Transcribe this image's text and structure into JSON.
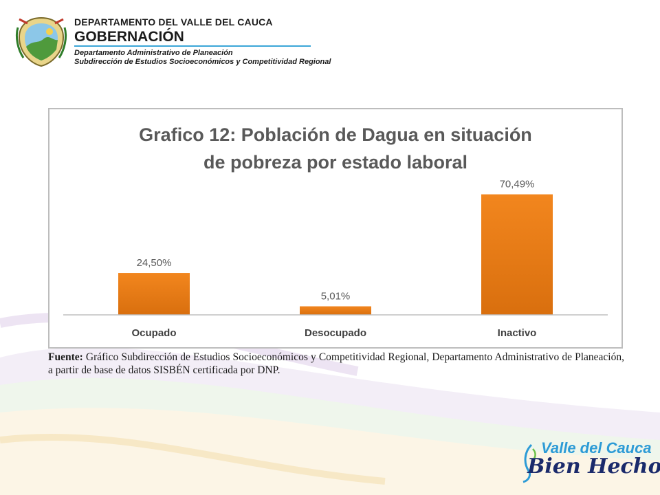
{
  "header": {
    "department": "DEPARTAMENTO DEL VALLE DEL CAUCA",
    "governorate": "GOBERNACIÓN",
    "admin_office": "Departamento  Administrativo de Planeación",
    "sub_office": "Subdirección de Estudios Socioeconómicos y Competitividad Regional"
  },
  "chart_data": {
    "type": "bar",
    "title_line1": "Grafico 12: Población de Dagua en situación",
    "title_line2": "de pobreza por estado laboral",
    "categories": [
      "Ocupado",
      "Desocupado",
      "Inactivo"
    ],
    "values": [
      24.5,
      5.01,
      70.49
    ],
    "value_labels": [
      "24,50%",
      "5,01%",
      "70,49%"
    ],
    "unit": "%",
    "ylim": [
      0,
      80
    ],
    "grid": false,
    "bar_color": "#f2861e",
    "bar_color_dark": "#d96f0e"
  },
  "source": {
    "label": "Fuente:",
    "text": " Gráfico Subdirección de Estudios Socioeconómicos y Competitividad Regional, Departamento Administrativo de Planeación, a partir de base de datos SISBÉN certificada por DNP."
  },
  "logo": {
    "line1": "Valle del Cauca",
    "line2": "Bien Hecho!"
  },
  "colors": {
    "accent_blue": "#3aa6d8",
    "logo_navy": "#1b2a6b"
  }
}
